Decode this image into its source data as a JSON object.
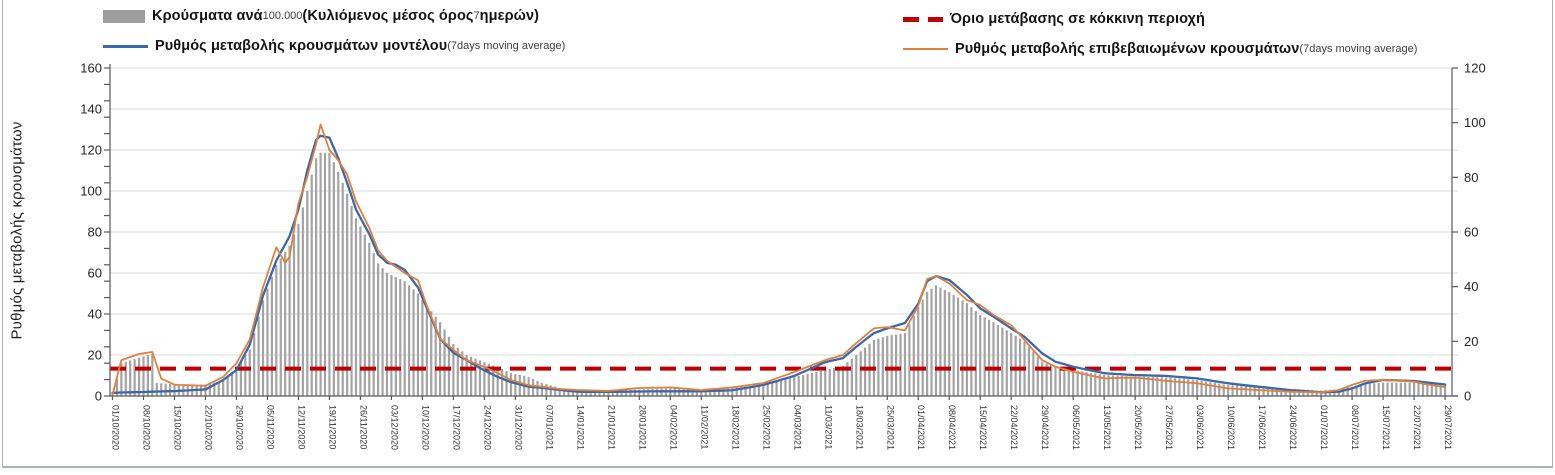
{
  "colors": {
    "bars": "#a3a3a3",
    "legend_bar_swatch": "#9e9e9e",
    "model_line": "#3a68ad",
    "confirmed_line": "#e2803a",
    "threshold_line": "#c00000",
    "gridline": "#d9d9d9",
    "axis_line": "#595959",
    "tick_label": "#262626",
    "x_label": "#333333"
  },
  "legend": {
    "items": [
      {
        "id": "bars",
        "swatch": "bar-gray",
        "segments": [
          {
            "text": "Κρούσματα ανά ",
            "style": "bold"
          },
          {
            "text": "100.000 ",
            "style": "small"
          },
          {
            "text": "(Κυλιόμενος μέσος όρος ",
            "style": "bold"
          },
          {
            "text": "7 ",
            "style": "small"
          },
          {
            "text": "ημερών)",
            "style": "bold"
          }
        ]
      },
      {
        "id": "model",
        "swatch": "line-blue",
        "segments": [
          {
            "text": "Ρυθμός μεταβολής κρουσμάτων μοντέλου ",
            "style": "bold"
          },
          {
            "text": "(7days moving average)",
            "style": "small"
          }
        ]
      },
      {
        "id": "threshold",
        "swatch": "dash-red",
        "segments": [
          {
            "text": "Όριο μετάβασης σε κόκκινη περιοχή",
            "style": "bold"
          }
        ]
      },
      {
        "id": "confirmed",
        "swatch": "line-orange",
        "segments": [
          {
            "text": "Ρυθμός μεταβολής επιβεβαιωμένων κρουσμάτων ",
            "style": "bold"
          },
          {
            "text": "(7days moving average)",
            "style": "small"
          }
        ]
      }
    ]
  },
  "chart_data": {
    "type": "composite (daily bars + two lines + threshold)",
    "title": "",
    "y_left": {
      "label": "Ρυθμός μεταβολής κρουσμάτων",
      "min": 0,
      "max": 160,
      "step": 20,
      "ticks": [
        0,
        20,
        40,
        60,
        80,
        100,
        120,
        140,
        160
      ]
    },
    "y_right": {
      "label": "",
      "min": 0,
      "max": 120,
      "step": 20,
      "ticks": [
        0,
        20,
        40,
        60,
        80,
        100,
        120
      ]
    },
    "x_axis": {
      "start_date": "01/10/2020",
      "end_date": "29/07/2021",
      "days_total": 302,
      "label_every_days": 7,
      "labels": [
        "01/10/2020",
        "08/10/2020",
        "15/10/2020",
        "22/10/2020",
        "29/10/2020",
        "05/11/2020",
        "12/11/2020",
        "19/11/2020",
        "26/11/2020",
        "03/12/2020",
        "10/12/2020",
        "17/12/2020",
        "24/12/2020",
        "31/12/2020",
        "07/01/2021",
        "14/01/2021",
        "21/01/2021",
        "28/01/2021",
        "04/02/2021",
        "11/02/2021",
        "18/02/2021",
        "25/02/2021",
        "04/03/2021",
        "11/03/2021",
        "18/03/2021",
        "25/03/2021",
        "01/04/2021",
        "08/04/2021",
        "15/04/2021",
        "22/04/2021",
        "29/04/2021",
        "06/05/2021",
        "13/05/2021",
        "20/05/2021",
        "27/05/2021",
        "03/06/2021",
        "10/06/2021",
        "17/06/2021",
        "24/06/2021",
        "01/07/2021",
        "08/07/2021",
        "15/07/2021",
        "22/07/2021",
        "29/07/2021"
      ]
    },
    "threshold": {
      "name": "Όριο μετάβασης σε κόκκινη περιοχή",
      "axis": "right",
      "value": 10
    },
    "series": [
      {
        "name": "Κρούσματα ανά 100.000 (Κυλιόμενος μέσος όρος 7 ημερών)",
        "render": "bars",
        "axis": "right",
        "anchors": [
          [
            0,
            1
          ],
          [
            2,
            12
          ],
          [
            6,
            14
          ],
          [
            9,
            15.5
          ],
          [
            10,
            4.8
          ],
          [
            14,
            4.2
          ],
          [
            21,
            4.2
          ],
          [
            25,
            5.5
          ],
          [
            28,
            10.5
          ],
          [
            31,
            17
          ],
          [
            34,
            35
          ],
          [
            37,
            48
          ],
          [
            40,
            55
          ],
          [
            42,
            63
          ],
          [
            44,
            75
          ],
          [
            46,
            87
          ],
          [
            47,
            89
          ],
          [
            49,
            89
          ],
          [
            51,
            82
          ],
          [
            53,
            74
          ],
          [
            55,
            65
          ],
          [
            58,
            56
          ],
          [
            60,
            48.5
          ],
          [
            62,
            45
          ],
          [
            64,
            43.5
          ],
          [
            66,
            42
          ],
          [
            69,
            37.5
          ],
          [
            71,
            33
          ],
          [
            74,
            27
          ],
          [
            77,
            19
          ],
          [
            80,
            15
          ],
          [
            83,
            13
          ],
          [
            87,
            10.6
          ],
          [
            90,
            8.4
          ],
          [
            94,
            7
          ],
          [
            97,
            4.8
          ],
          [
            101,
            3
          ],
          [
            105,
            2.2
          ],
          [
            112,
            2.1
          ],
          [
            119,
            2.4
          ],
          [
            126,
            2.8
          ],
          [
            133,
            2.2
          ],
          [
            140,
            3
          ],
          [
            147,
            4
          ],
          [
            154,
            7
          ],
          [
            161,
            9.5
          ],
          [
            165,
            11
          ],
          [
            168,
            15
          ],
          [
            172,
            20.5
          ],
          [
            175,
            22
          ],
          [
            179,
            23
          ],
          [
            182,
            32.5
          ],
          [
            184,
            38
          ],
          [
            186,
            40.5
          ],
          [
            189,
            38
          ],
          [
            193,
            34
          ],
          [
            196,
            29.6
          ],
          [
            199,
            27
          ],
          [
            203,
            23
          ],
          [
            206,
            20
          ],
          [
            210,
            12.5
          ],
          [
            213,
            11
          ],
          [
            217,
            9.5
          ],
          [
            224,
            7.7
          ],
          [
            231,
            7.1
          ],
          [
            238,
            6.8
          ],
          [
            245,
            5.9
          ],
          [
            252,
            4
          ],
          [
            259,
            3.5
          ],
          [
            266,
            2.6
          ],
          [
            273,
            2
          ],
          [
            277,
            2.5
          ],
          [
            280,
            3.4
          ],
          [
            283,
            4.4
          ],
          [
            287,
            4.9
          ],
          [
            294,
            4.9
          ],
          [
            297,
            4.7
          ],
          [
            301,
            4.3
          ]
        ]
      },
      {
        "name": "Ρυθμός μεταβολής κρουσμάτων μοντέλου (7days moving average)",
        "render": "line",
        "axis": "left",
        "color_key": "model_line",
        "width": 2.3,
        "anchors": [
          [
            0,
            1.5
          ],
          [
            2,
            1.7
          ],
          [
            6,
            1.9
          ],
          [
            9,
            2.1
          ],
          [
            14,
            2.4
          ],
          [
            21,
            3.2
          ],
          [
            25,
            7.8
          ],
          [
            28,
            12.7
          ],
          [
            31,
            25
          ],
          [
            34,
            49
          ],
          [
            37,
            66
          ],
          [
            40,
            78
          ],
          [
            42,
            91
          ],
          [
            44,
            110
          ],
          [
            46,
            125
          ],
          [
            47,
            127
          ],
          [
            49,
            126
          ],
          [
            51,
            116
          ],
          [
            53,
            104
          ],
          [
            55,
            91
          ],
          [
            58,
            79
          ],
          [
            60,
            69
          ],
          [
            62,
            65
          ],
          [
            64,
            64
          ],
          [
            66,
            61.5
          ],
          [
            69,
            53
          ],
          [
            71,
            43
          ],
          [
            74,
            28
          ],
          [
            77,
            21
          ],
          [
            80,
            17.5
          ],
          [
            83,
            13.6
          ],
          [
            87,
            9.3
          ],
          [
            90,
            6.8
          ],
          [
            94,
            4.5
          ],
          [
            97,
            4
          ],
          [
            101,
            3
          ],
          [
            105,
            2.1
          ],
          [
            112,
            2
          ],
          [
            119,
            2.2
          ],
          [
            126,
            2.3
          ],
          [
            133,
            2.3
          ],
          [
            140,
            2.8
          ],
          [
            147,
            5.4
          ],
          [
            154,
            9.8
          ],
          [
            161,
            16.5
          ],
          [
            165,
            18.5
          ],
          [
            168,
            24
          ],
          [
            172,
            30.7
          ],
          [
            175,
            33
          ],
          [
            179,
            35.6
          ],
          [
            182,
            45
          ],
          [
            184,
            56
          ],
          [
            186,
            58.5
          ],
          [
            189,
            56.6
          ],
          [
            193,
            49.3
          ],
          [
            196,
            42.8
          ],
          [
            199,
            38.7
          ],
          [
            203,
            33
          ],
          [
            206,
            28.9
          ],
          [
            210,
            20.8
          ],
          [
            213,
            16.7
          ],
          [
            217,
            14.3
          ],
          [
            224,
            11.1
          ],
          [
            231,
            10.2
          ],
          [
            238,
            9.8
          ],
          [
            245,
            8.6
          ],
          [
            252,
            6.2
          ],
          [
            259,
            4.5
          ],
          [
            266,
            2.9
          ],
          [
            273,
            1.8
          ],
          [
            277,
            2.1
          ],
          [
            280,
            3.7
          ],
          [
            283,
            6.2
          ],
          [
            287,
            7.8
          ],
          [
            294,
            7.3
          ],
          [
            297,
            6.6
          ],
          [
            301,
            5.6
          ]
        ]
      },
      {
        "name": "Ρυθμός μεταβολής επιβεβαιωμένων κρουσμάτων (7days moving average)",
        "render": "line",
        "axis": "left",
        "color_key": "confirmed_line",
        "width": 1.8,
        "anchors": [
          [
            0,
            0.5
          ],
          [
            2,
            17.5
          ],
          [
            6,
            20.5
          ],
          [
            9,
            21.5
          ],
          [
            11,
            8.5
          ],
          [
            14,
            5.5
          ],
          [
            21,
            5
          ],
          [
            25,
            9.3
          ],
          [
            28,
            16
          ],
          [
            31,
            27.5
          ],
          [
            34,
            53
          ],
          [
            37,
            72.5
          ],
          [
            39,
            65
          ],
          [
            40,
            68
          ],
          [
            42,
            94
          ],
          [
            44,
            107
          ],
          [
            46,
            123
          ],
          [
            47,
            132.5
          ],
          [
            49,
            120
          ],
          [
            51,
            115
          ],
          [
            53,
            108
          ],
          [
            55,
            95
          ],
          [
            58,
            82
          ],
          [
            60,
            71
          ],
          [
            62,
            66
          ],
          [
            64,
            63
          ],
          [
            66,
            60
          ],
          [
            69,
            56.5
          ],
          [
            71,
            44
          ],
          [
            74,
            28
          ],
          [
            77,
            22.5
          ],
          [
            80,
            17.5
          ],
          [
            83,
            15
          ],
          [
            87,
            11.2
          ],
          [
            90,
            7.8
          ],
          [
            94,
            5.2
          ],
          [
            97,
            4.6
          ],
          [
            101,
            3.4
          ],
          [
            105,
            2.9
          ],
          [
            112,
            2.5
          ],
          [
            119,
            3.9
          ],
          [
            126,
            4.2
          ],
          [
            133,
            2.9
          ],
          [
            140,
            4.2
          ],
          [
            147,
            6.3
          ],
          [
            154,
            11.7
          ],
          [
            161,
            17.5
          ],
          [
            165,
            20
          ],
          [
            168,
            25.8
          ],
          [
            172,
            33
          ],
          [
            175,
            33.6
          ],
          [
            179,
            32
          ],
          [
            182,
            44
          ],
          [
            184,
            57
          ],
          [
            186,
            58.5
          ],
          [
            189,
            55
          ],
          [
            193,
            46.8
          ],
          [
            196,
            44.4
          ],
          [
            199,
            39.5
          ],
          [
            203,
            34.6
          ],
          [
            206,
            27.3
          ],
          [
            210,
            17.5
          ],
          [
            213,
            14.3
          ],
          [
            217,
            11.8
          ],
          [
            224,
            8.6
          ],
          [
            231,
            9
          ],
          [
            238,
            7.4
          ],
          [
            245,
            6.2
          ],
          [
            252,
            3.7
          ],
          [
            259,
            2.9
          ],
          [
            266,
            2.1
          ],
          [
            273,
            1.8
          ],
          [
            277,
            2.9
          ],
          [
            280,
            5.4
          ],
          [
            283,
            7.5
          ],
          [
            287,
            7.8
          ],
          [
            294,
            7
          ],
          [
            297,
            5.6
          ],
          [
            301,
            4.4
          ]
        ]
      }
    ],
    "layout_hints": {
      "gridlines": "horizontal every 20 left-units",
      "legend_position": "top, two columns",
      "x_labels_rotation": "90deg clockwise"
    }
  }
}
